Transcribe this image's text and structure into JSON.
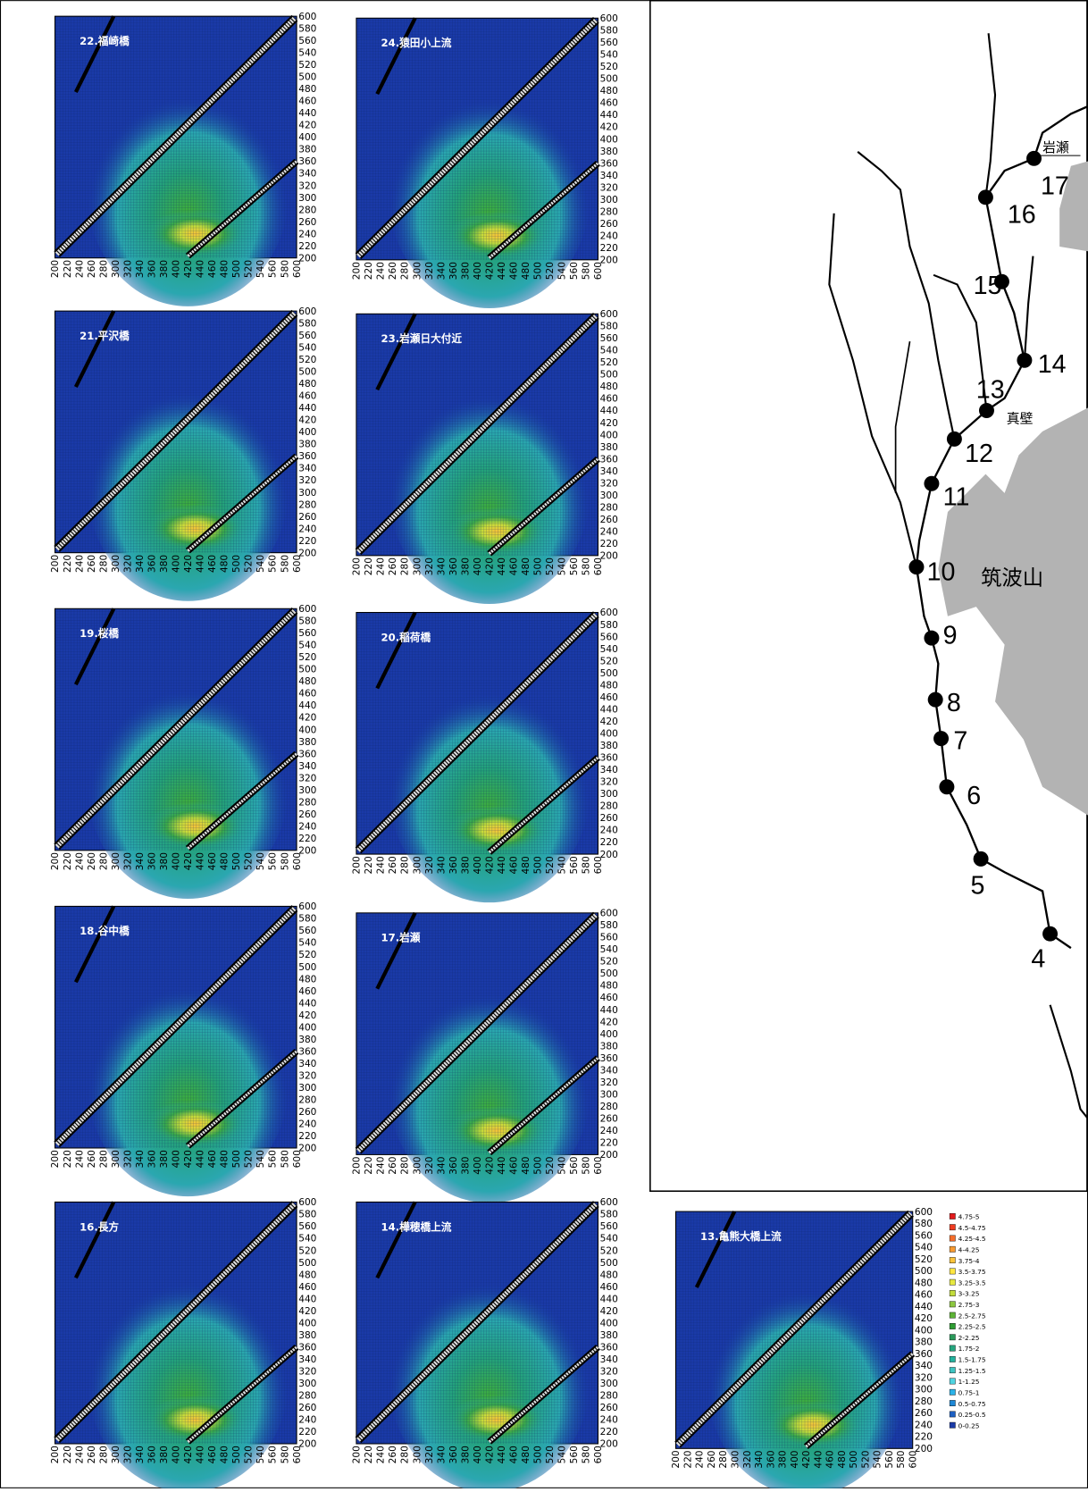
{
  "panels": [
    {
      "title": "22.福崎橋"
    },
    {
      "title": "24.猿田小上流"
    },
    {
      "title": "21.平沢橋"
    },
    {
      "title": "23.岩瀬日大付近"
    },
    {
      "title": "19.桜橋"
    },
    {
      "title": "20.稲荷橋"
    },
    {
      "title": "18.谷中橋"
    },
    {
      "title": "17.岩瀬"
    },
    {
      "title": "16.長方"
    },
    {
      "title": "14.樺穂橋上流"
    },
    {
      "title": "13.亀熊大橋上流"
    }
  ],
  "axis_ticks": [
    200,
    220,
    240,
    260,
    280,
    300,
    320,
    340,
    360,
    380,
    400,
    420,
    440,
    460,
    480,
    500,
    520,
    540,
    560,
    580,
    600
  ],
  "legend": [
    {
      "label": "4.75-5",
      "color": "#e31a1c"
    },
    {
      "label": "4.5-4.75",
      "color": "#f03b20"
    },
    {
      "label": "4.25-4.5",
      "color": "#f46d2a"
    },
    {
      "label": "4-4.25",
      "color": "#f89a30"
    },
    {
      "label": "3.75-4",
      "color": "#fdc43a"
    },
    {
      "label": "3.5-3.75",
      "color": "#ffe640"
    },
    {
      "label": "3.25-3.5",
      "color": "#e6e840"
    },
    {
      "label": "3-3.25",
      "color": "#c2dc3a"
    },
    {
      "label": "2.75-3",
      "color": "#8cc63f"
    },
    {
      "label": "2.5-2.75",
      "color": "#5cb335"
    },
    {
      "label": "2.25-2.5",
      "color": "#2e9e32"
    },
    {
      "label": "2-2.25",
      "color": "#2a9a5a"
    },
    {
      "label": "1.75-2",
      "color": "#25a57e"
    },
    {
      "label": "1.5-1.75",
      "color": "#22b39f"
    },
    {
      "label": "1.25-1.5",
      "color": "#3ec4c2"
    },
    {
      "label": "1-1.25",
      "color": "#4fd3e0"
    },
    {
      "label": "0.75-1",
      "color": "#2bb2e8"
    },
    {
      "label": "0.5-0.75",
      "color": "#1e88d6"
    },
    {
      "label": "0.25-0.5",
      "color": "#1d5fc2"
    },
    {
      "label": "0-0.25",
      "color": "#1a3aa8"
    }
  ],
  "map": {
    "points": [
      "17",
      "16",
      "15",
      "14",
      "13",
      "12",
      "11",
      "10",
      "9",
      "8",
      "7",
      "6",
      "5",
      "4"
    ],
    "places": [
      "岩瀬",
      "真壁",
      "筑波山"
    ]
  }
}
